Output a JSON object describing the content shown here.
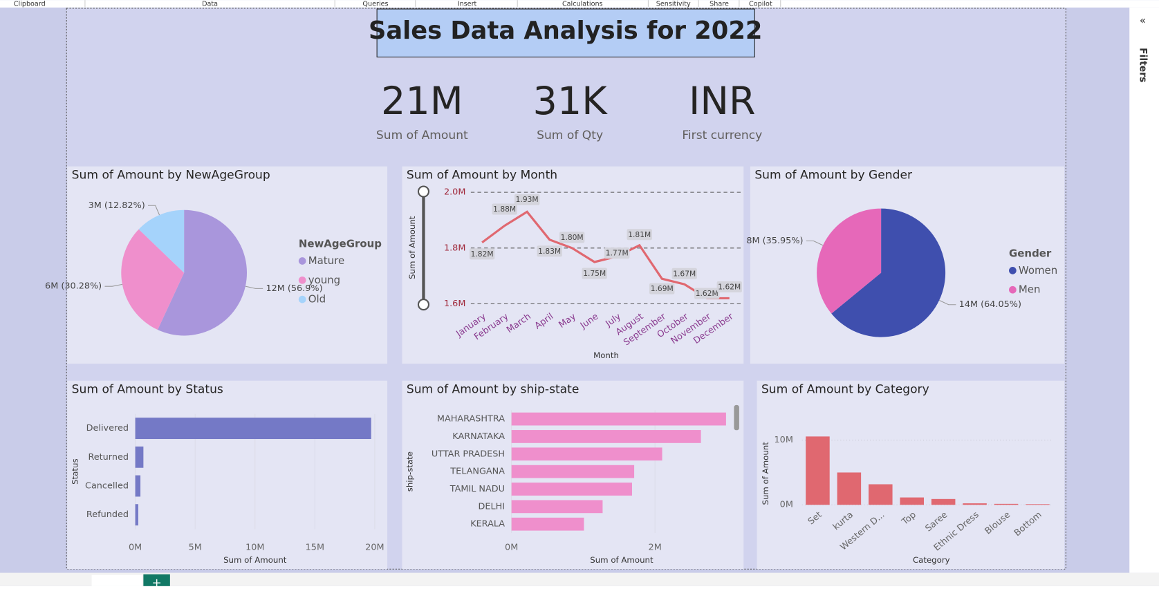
{
  "ribbon": [
    "Clipboard",
    "Data",
    "Queries",
    "Insert",
    "Calculations",
    "Sensitivity",
    "Share",
    "Copilot"
  ],
  "header": {
    "title": "Sales Data Analysis for 2022"
  },
  "cards": [
    {
      "value": "21M",
      "label": "Sum of Amount"
    },
    {
      "value": "31K",
      "label": "Sum of Qty"
    },
    {
      "value": "INR",
      "label": "First currency"
    }
  ],
  "filters_pane": {
    "label": "Filters"
  },
  "chart_data": [
    {
      "type": "pie",
      "title": "Sum of Amount by NewAgeGroup",
      "legend_title": "NewAgeGroup",
      "categories": [
        "Mature",
        "young",
        "Old"
      ],
      "values": [
        56.9,
        30.28,
        12.82
      ],
      "value_labels": [
        "12M (56.9%)",
        "6M (30.28%)",
        "3M (12.82%)"
      ],
      "colors": [
        "#a996dc",
        "#ef8fcc",
        "#a5d3fb"
      ],
      "legend": "right"
    },
    {
      "type": "line",
      "title": "Sum of Amount by Month",
      "x_label": "Month",
      "y_label": "Sum of Amount",
      "categories": [
        "January",
        "February",
        "March",
        "April",
        "May",
        "June",
        "July",
        "August",
        "September",
        "October",
        "November",
        "December"
      ],
      "values": [
        1.82,
        1.88,
        1.93,
        1.83,
        1.8,
        1.75,
        1.77,
        1.81,
        1.69,
        1.67,
        1.62,
        1.62
      ],
      "value_labels": [
        "1.82M",
        "1.88M",
        "1.93M",
        "1.83M",
        "1.80M",
        "1.75M",
        "1.77M",
        "1.81M",
        "1.69M",
        "1.67M",
        "1.62M",
        "1.62M"
      ],
      "color": "#e06870",
      "ylim": [
        1.6,
        2.0
      ],
      "yticks": [
        {
          "value": 1.6,
          "label": "1.6M"
        },
        {
          "value": 1.8,
          "label": "1.8M"
        },
        {
          "value": 2.0,
          "label": "2.0M"
        }
      ],
      "grid": true
    },
    {
      "type": "pie",
      "title": "Sum of Amount by Gender",
      "legend_title": "Gender",
      "categories": [
        "Women",
        "Men"
      ],
      "values": [
        64.05,
        35.95
      ],
      "value_labels": [
        "14M (64.05%)",
        "8M (35.95%)"
      ],
      "colors": [
        "#3f4fae",
        "#e668b9"
      ],
      "legend": "right"
    },
    {
      "type": "hbar",
      "title": "Sum of Amount by Status",
      "x_label": "Sum of Amount",
      "y_label": "Status",
      "categories": [
        "Delivered",
        "Returned",
        "Cancelled",
        "Refunded"
      ],
      "values": [
        19.7,
        0.68,
        0.43,
        0.25
      ],
      "color": "#7479c6",
      "xlim": [
        0,
        20
      ],
      "xticks": [
        {
          "value": 0,
          "label": "0M"
        },
        {
          "value": 5,
          "label": "5M"
        },
        {
          "value": 10,
          "label": "10M"
        },
        {
          "value": 15,
          "label": "15M"
        },
        {
          "value": 20,
          "label": "20M"
        }
      ]
    },
    {
      "type": "hbar",
      "title": "Sum of Amount by ship-state",
      "x_label": "Sum of Amount",
      "y_label": "ship-state",
      "categories": [
        "MAHARASHTRA",
        "KARNATAKA",
        "UTTAR PRADESH",
        "TELANGANA",
        "TAMIL NADU",
        "DELHI",
        "KERALA"
      ],
      "values": [
        2.99,
        2.64,
        2.1,
        1.71,
        1.68,
        1.27,
        1.01
      ],
      "color": "#ef8fcc",
      "xlim": [
        0,
        3.07
      ],
      "xticks": [
        {
          "value": 0,
          "label": "0M"
        },
        {
          "value": 2,
          "label": "2M"
        }
      ]
    },
    {
      "type": "bar",
      "title": "Sum of Amount by Category",
      "x_label": "Category",
      "y_label": "Sum of Amount",
      "categories": [
        "Set",
        "kurta",
        "Western D...",
        "Top",
        "Saree",
        "Ethnic Dress",
        "Blouse",
        "Bottom"
      ],
      "values": [
        10.57,
        5.0,
        3.18,
        1.14,
        0.9,
        0.23,
        0.15,
        0.1
      ],
      "color": "#e06870",
      "ylim": [
        0,
        12
      ],
      "yticks": [
        {
          "value": 0,
          "label": "0M"
        },
        {
          "value": 10,
          "label": "10M"
        }
      ],
      "grid": true
    }
  ]
}
